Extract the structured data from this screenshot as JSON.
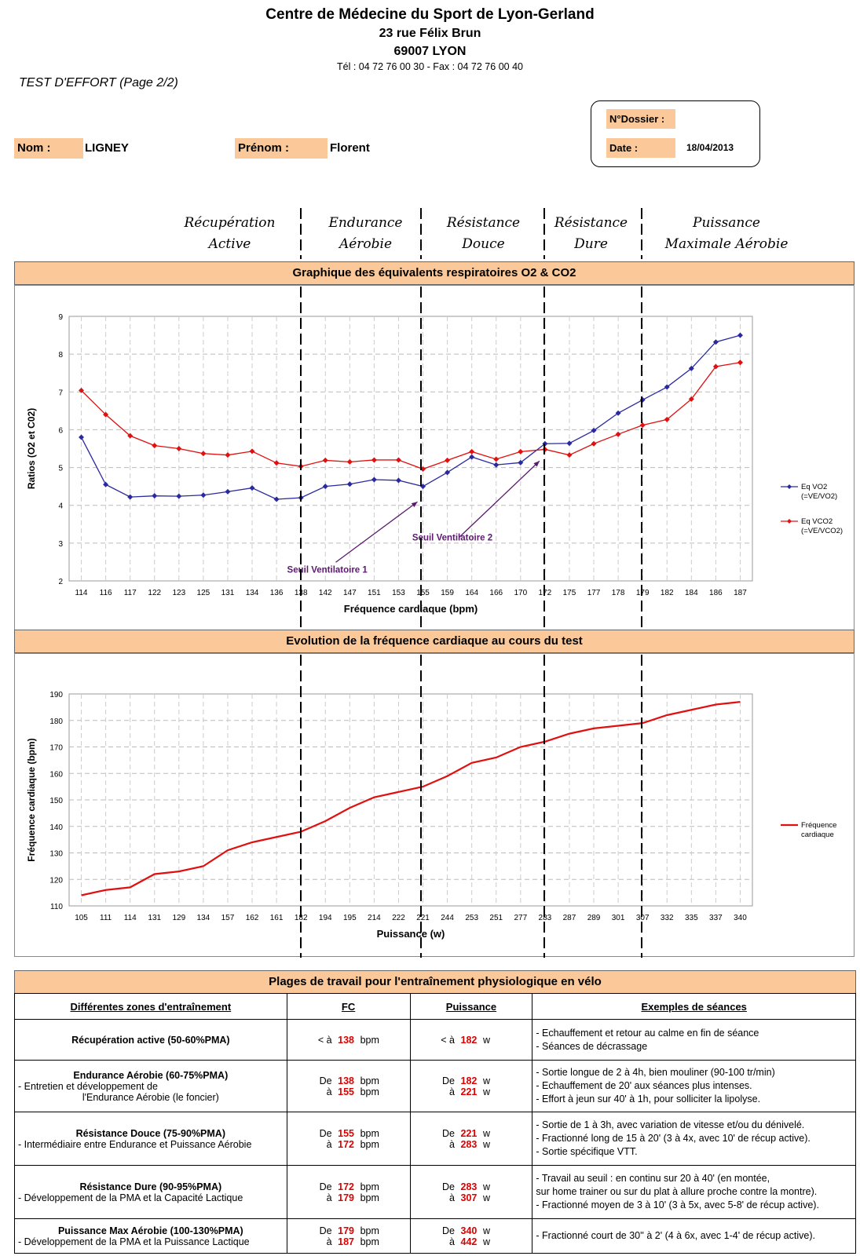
{
  "header": {
    "center": "Centre de Médecine du Sport de Lyon-Gerland",
    "street": "23 rue Félix Brun",
    "city": "69007 LYON",
    "phone": "Tél : 04 72 76 00 30 - Fax : 04 72 76 00 40"
  },
  "page_label": "TEST D'EFFORT (Page 2/2)",
  "patient": {
    "nom_label": "Nom :",
    "nom": "LIGNEY",
    "prenom_label": "Prénom :",
    "prenom": "Florent",
    "dossier_label": "N°Dossier :",
    "date_label": "Date :",
    "date": "18/04/2013"
  },
  "zones": [
    {
      "line1": "Récupération",
      "line2": "Active"
    },
    {
      "line1": "Endurance",
      "line2": "Aérobie"
    },
    {
      "line1": "Résistance",
      "line2": "Douce"
    },
    {
      "line1": "Résistance",
      "line2": "Dure"
    },
    {
      "line1": "Puissance",
      "line2": "Maximale Aérobie"
    }
  ],
  "chart_data": [
    {
      "type": "line",
      "title": "Graphique des équivalents respiratoires O2 & CO2",
      "xlabel": "Fréquence cardiaque (bpm)",
      "ylabel": "Ratios (O2 et C02)",
      "ylim": [
        2,
        9
      ],
      "yticks": [
        2,
        3,
        4,
        5,
        6,
        7,
        8,
        9
      ],
      "categories": [
        "114",
        "116",
        "117",
        "122",
        "123",
        "125",
        "131",
        "134",
        "136",
        "138",
        "142",
        "147",
        "151",
        "153",
        "155",
        "159",
        "164",
        "166",
        "170",
        "172",
        "175",
        "177",
        "178",
        "179",
        "182",
        "184",
        "186",
        "187"
      ],
      "series": [
        {
          "name": "Eq VO2 (=VE/VO2)",
          "legend1": "Eq VO2",
          "legend2": "(=VE/VO2)",
          "color": "#2a2a9e",
          "values": [
            5.8,
            4.55,
            4.22,
            4.25,
            4.24,
            4.27,
            4.36,
            4.46,
            4.16,
            4.2,
            4.5,
            4.56,
            4.68,
            4.66,
            4.5,
            4.87,
            5.28,
            5.07,
            5.13,
            5.63,
            5.64,
            5.98,
            6.44,
            6.79,
            7.13,
            7.62,
            8.32,
            8.5
          ]
        },
        {
          "name": "Eq VCO2 (=VE/VCO2)",
          "legend1": "Eq VCO2",
          "legend2": "(=VE/VCO2)",
          "color": "#e01010",
          "values": [
            7.04,
            6.4,
            5.84,
            5.58,
            5.5,
            5.37,
            5.33,
            5.43,
            5.12,
            5.03,
            5.19,
            5.15,
            5.2,
            5.2,
            4.96,
            5.19,
            5.42,
            5.22,
            5.42,
            5.48,
            5.33,
            5.63,
            5.88,
            6.12,
            6.27,
            6.81,
            7.67,
            7.78
          ]
        }
      ],
      "annotations": [
        {
          "text": "Seuil Ventilatoire 1",
          "x": "155",
          "y": 4.3
        },
        {
          "text": "Seuil Ventilatoire 2",
          "x": "172",
          "y": 5.38
        }
      ]
    },
    {
      "type": "line",
      "title": "Evolution de la fréquence cardiaque au cours du test",
      "xlabel": "Puissance (w)",
      "ylabel": "Fréquence cardiaque (bpm)",
      "ylim": [
        110,
        190
      ],
      "yticks": [
        110,
        120,
        130,
        140,
        150,
        160,
        170,
        180,
        190
      ],
      "categories": [
        "105",
        "111",
        "114",
        "131",
        "129",
        "134",
        "157",
        "162",
        "161",
        "182",
        "194",
        "195",
        "214",
        "222",
        "221",
        "244",
        "253",
        "251",
        "277",
        "283",
        "287",
        "289",
        "301",
        "307",
        "332",
        "335",
        "337",
        "340"
      ],
      "series": [
        {
          "name": "Fréquence cardiaque",
          "legend1": "Fréquence",
          "legend2": "cardiaque",
          "color": "#e01010",
          "values": [
            114,
            116,
            117,
            122,
            123,
            125,
            131,
            134,
            136,
            138,
            142,
            147,
            151,
            153,
            155,
            159,
            164,
            166,
            170,
            172,
            175,
            177,
            178,
            179,
            182,
            184,
            186,
            187
          ]
        }
      ]
    }
  ],
  "plages": {
    "title": "Plages de travail pour l'entraînement physiologique en vélo",
    "headers": [
      "Différentes zones d'entraînement",
      "FC",
      "Puissance",
      "Exemples de séances"
    ],
    "rows": [
      {
        "name": "Récupération active (50-60%PMA)",
        "sub1": "",
        "sub2": "",
        "fc_pre1": "< à",
        "fc1": "138",
        "fc_pre2": "",
        "fc2": "",
        "unit_fc": "bpm",
        "p_pre1": "< à",
        "p1": "182",
        "p_pre2": "",
        "p2": "",
        "unit_p": "w",
        "examples": [
          "- Echauffement et retour au calme en fin de séance",
          "- Séances de décrassage"
        ]
      },
      {
        "name": "Endurance Aérobie (60-75%PMA)",
        "sub1": "- Entretien et développement de",
        "sub2": "l'Endurance Aérobie (le foncier)",
        "fc_pre1": "De",
        "fc1": "138",
        "fc_pre2": "à",
        "fc2": "155",
        "unit_fc": "bpm",
        "p_pre1": "De",
        "p1": "182",
        "p_pre2": "à",
        "p2": "221",
        "unit_p": "w",
        "examples": [
          "- Sortie longue de 2 à 4h, bien mouliner (90-100 tr/min)",
          "- Echauffement de 20' aux séances plus intenses.",
          "- Effort à jeun sur 40' à 1h, pour solliciter la lipolyse."
        ]
      },
      {
        "name": "Résistance Douce (75-90%PMA)",
        "sub1": "- Intermédiaire entre Endurance et Puissance Aérobie",
        "sub2": "",
        "fc_pre1": "De",
        "fc1": "155",
        "fc_pre2": "à",
        "fc2": "172",
        "unit_fc": "bpm",
        "p_pre1": "De",
        "p1": "221",
        "p_pre2": "à",
        "p2": "283",
        "unit_p": "w",
        "examples": [
          "- Sortie de 1 à 3h, avec variation de vitesse et/ou du dénivelé.",
          "- Fractionné long de 15 à 20' (3 à 4x, avec 10' de récup active).",
          "- Sortie spécifique VTT."
        ]
      },
      {
        "name": "Résistance Dure (90-95%PMA)",
        "sub1": "- Développement de la PMA et la Capacité Lactique",
        "sub2": "",
        "fc_pre1": "De",
        "fc1": "172",
        "fc_pre2": "à",
        "fc2": "179",
        "unit_fc": "bpm",
        "p_pre1": "De",
        "p1": "283",
        "p_pre2": "à",
        "p2": "307",
        "unit_p": "w",
        "examples": [
          "- Travail au seuil : en continu sur 20 à 40' (en montée,",
          "sur home trainer ou sur du plat à allure proche contre la montre).",
          "- Fractionné moyen de 3 à 10' (3 à 5x, avec 5-8' de récup active)."
        ]
      },
      {
        "name": "Puissance Max Aérobie (100-130%PMA)",
        "sub1": "- Développement de la PMA et la Puissance Lactique",
        "sub2": "",
        "fc_pre1": "De",
        "fc1": "179",
        "fc_pre2": "à",
        "fc2": "187",
        "unit_fc": "bpm",
        "p_pre1": "De",
        "p1": "340",
        "p_pre2": "à",
        "p2": "442",
        "unit_p": "w",
        "examples": [
          "- Fractionné court de 30'' à 2' (4 à 6x, avec 1-4' de récup active)."
        ]
      }
    ]
  }
}
